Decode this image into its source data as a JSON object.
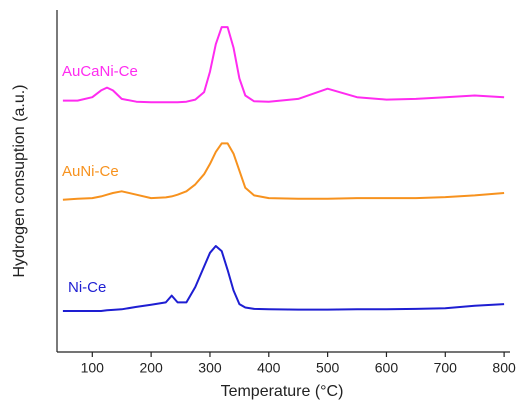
{
  "chart_data": {
    "type": "line",
    "x_label": "Temperature (°C)",
    "y_label": "Hydrogen consuption (a.u.)",
    "x": [
      50,
      75,
      100,
      115,
      125,
      135,
      150,
      175,
      200,
      225,
      235,
      245,
      260,
      275,
      290,
      300,
      310,
      320,
      330,
      340,
      350,
      360,
      375,
      400,
      450,
      500,
      550,
      600,
      650,
      700,
      750,
      800
    ],
    "series": [
      {
        "name": "AuCaNi-Ce",
        "color": "#ff2bf0",
        "values": [
          73.5,
          73.5,
          74.5,
          76.5,
          77.3,
          76.5,
          74,
          73.2,
          73,
          73,
          73,
          73,
          73.2,
          73.8,
          76,
          82,
          90,
          95,
          95,
          89,
          80,
          75,
          73.3,
          73.2,
          74,
          77,
          74.5,
          73.8,
          74,
          74.5,
          75,
          74.5
        ]
      },
      {
        "name": "AuNi-Ce",
        "color": "#f7921e",
        "values": [
          44.5,
          44.8,
          45,
          45.5,
          46,
          46.5,
          47,
          46,
          45,
          45.2,
          45.5,
          46,
          47,
          49,
          52,
          55,
          58.5,
          61,
          61,
          58,
          53,
          48,
          45.8,
          45,
          44.8,
          44.8,
          45,
          45,
          45,
          45.3,
          45.8,
          46.5
        ]
      },
      {
        "name": "Ni-Ce",
        "color": "#1e1ed2",
        "values": [
          12,
          12,
          12,
          12,
          12.2,
          12.3,
          12.5,
          13.2,
          13.8,
          14.5,
          16.5,
          14.5,
          14.5,
          19,
          25,
          29,
          31,
          29.5,
          24,
          18,
          14,
          13,
          12.6,
          12.5,
          12.4,
          12.4,
          12.5,
          12.5,
          12.6,
          12.8,
          13.5,
          14
        ]
      }
    ],
    "xlim": [
      40,
      810
    ],
    "xticks": [
      100,
      200,
      300,
      400,
      500,
      600,
      700,
      800
    ],
    "ylim": [
      0,
      100
    ]
  }
}
